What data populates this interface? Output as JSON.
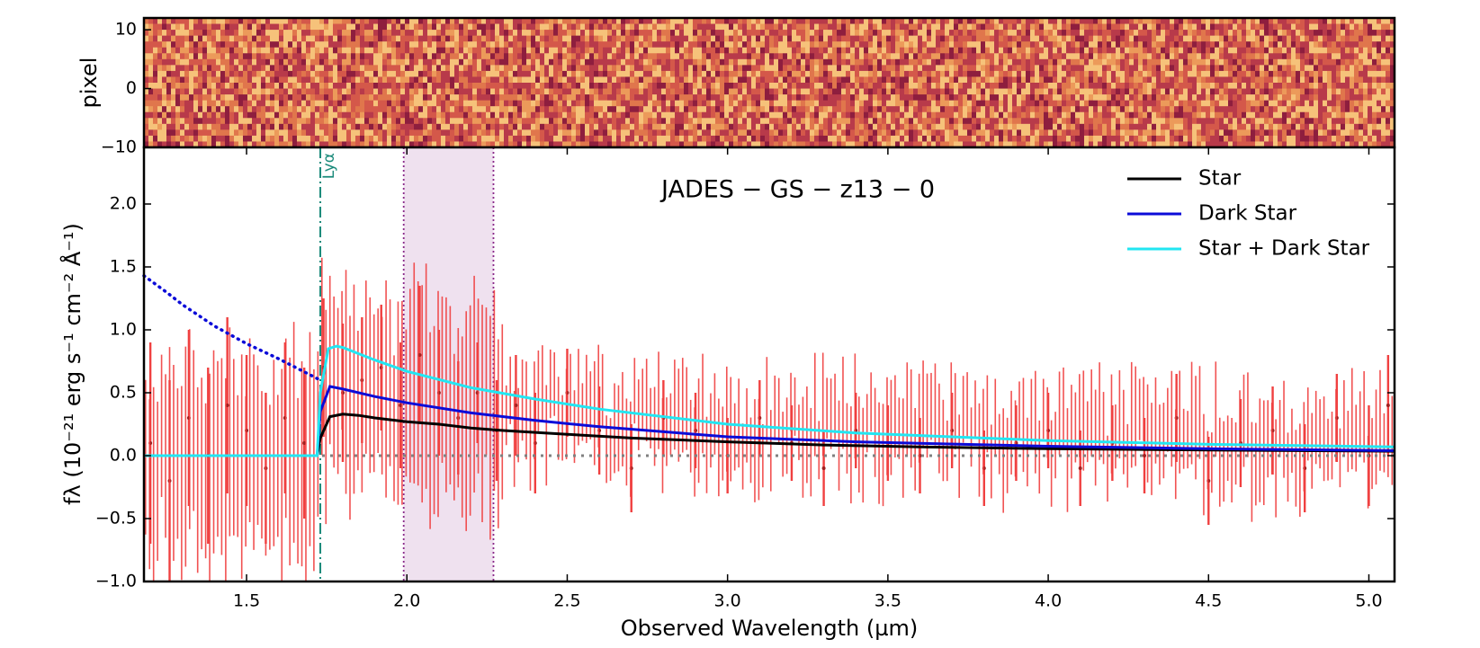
{
  "chart_data": [
    {
      "type": "heatmap",
      "name": "2D spectrum",
      "ylabel": "pixel",
      "ylim": [
        -10,
        12
      ],
      "y_ticks": [
        "10",
        "0",
        "−10"
      ],
      "xlim": [
        1.18,
        5.08
      ],
      "colormap": [
        "#8e1e3e",
        "#b83a4a",
        "#d4584a",
        "#e0764c",
        "#ec9a5a",
        "#f6c27a"
      ]
    },
    {
      "type": "line",
      "title": "JADES − GS − z13 − 0",
      "xlabel": "Observed Wavelength (µm)",
      "ylabel": "fλ (10⁻²¹ erg s⁻¹ cm⁻² Å⁻¹)",
      "xlim": [
        1.18,
        5.08
      ],
      "ylim": [
        -1.0,
        2.45
      ],
      "x_ticks": [
        "1.5",
        "2.0",
        "2.5",
        "3.0",
        "3.5",
        "4.0",
        "4.5",
        "5.0"
      ],
      "y_ticks": [
        "−1.0",
        "−0.5",
        "0.0",
        "0.5",
        "1.0",
        "1.5",
        "2.0"
      ],
      "lya_label": "Lyα",
      "lya_wavelength": 1.73,
      "shaded_band": [
        1.99,
        2.27
      ],
      "legend_position": "top-right",
      "series": [
        {
          "name": "Star",
          "color": "#000000",
          "x": [
            1.18,
            1.72,
            1.73,
            1.76,
            1.8,
            1.85,
            1.9,
            2.0,
            2.1,
            2.2,
            2.3,
            2.5,
            2.7,
            3.0,
            3.3,
            3.6,
            4.0,
            4.5,
            5.08
          ],
          "values": [
            0.0,
            0.0,
            0.14,
            0.31,
            0.33,
            0.32,
            0.3,
            0.27,
            0.25,
            0.22,
            0.2,
            0.17,
            0.14,
            0.11,
            0.085,
            0.07,
            0.055,
            0.045,
            0.035
          ]
        },
        {
          "name": "Dark Star",
          "color": "#0b0bd8",
          "x": [
            1.18,
            1.72,
            1.73,
            1.76,
            1.8,
            1.9,
            2.0,
            2.2,
            2.4,
            2.6,
            3.0,
            3.4,
            4.0,
            4.5,
            5.08
          ],
          "values": [
            0.0,
            0.0,
            0.35,
            0.55,
            0.53,
            0.47,
            0.42,
            0.34,
            0.28,
            0.23,
            0.15,
            0.11,
            0.075,
            0.055,
            0.04
          ],
          "extrapolation": {
            "style": "dotted",
            "x": [
              1.18,
              1.25,
              1.3,
              1.4,
              1.5,
              1.6,
              1.7,
              1.73
            ],
            "values": [
              1.43,
              1.3,
              1.2,
              1.03,
              0.89,
              0.77,
              0.64,
              0.6
            ]
          }
        },
        {
          "name": "Star + Dark Star",
          "color": "#22e6f2",
          "x": [
            1.18,
            1.72,
            1.73,
            1.755,
            1.78,
            1.8,
            1.9,
            2.0,
            2.2,
            2.4,
            2.6,
            3.0,
            3.4,
            4.0,
            4.5,
            5.08
          ],
          "values": [
            0.0,
            0.0,
            0.5,
            0.85,
            0.87,
            0.86,
            0.76,
            0.67,
            0.54,
            0.45,
            0.37,
            0.25,
            0.18,
            0.12,
            0.09,
            0.07
          ]
        }
      ],
      "zero_line": {
        "style": "dotted",
        "color": "#808080",
        "value": 0.0
      },
      "data_points": {
        "name": "observed spectrum",
        "color": "#f04040",
        "x": [
          1.2,
          1.26,
          1.32,
          1.38,
          1.44,
          1.5,
          1.56,
          1.62,
          1.68,
          1.74,
          1.8,
          1.86,
          1.92,
          1.98,
          2.04,
          2.1,
          2.16,
          2.22,
          2.28,
          2.34,
          2.4,
          2.5,
          2.6,
          2.7,
          2.8,
          2.9,
          3.0,
          3.1,
          3.2,
          3.3,
          3.4,
          3.5,
          3.6,
          3.7,
          3.8,
          3.9,
          4.0,
          4.1,
          4.2,
          4.3,
          4.4,
          4.5,
          4.6,
          4.7,
          4.8,
          4.9,
          5.0,
          5.06
        ],
        "values": [
          0.1,
          -0.2,
          0.3,
          0.0,
          0.4,
          0.2,
          -0.1,
          0.3,
          0.1,
          0.7,
          0.5,
          0.6,
          0.7,
          0.4,
          0.8,
          0.5,
          0.3,
          0.5,
          0.2,
          0.4,
          0.1,
          0.5,
          0.2,
          -0.1,
          0.3,
          0.2,
          0.0,
          0.3,
          0.1,
          -0.1,
          0.2,
          0.1,
          0.0,
          0.2,
          -0.1,
          0.1,
          0.2,
          -0.1,
          0.1,
          0.0,
          0.3,
          -0.2,
          0.1,
          0.2,
          -0.1,
          0.3,
          0.0,
          0.4
        ],
        "errors": [
          0.8,
          0.8,
          0.7,
          0.7,
          0.7,
          0.6,
          0.6,
          0.6,
          0.6,
          0.55,
          0.55,
          0.5,
          0.5,
          0.5,
          0.55,
          0.5,
          0.45,
          0.4,
          0.4,
          0.4,
          0.4,
          0.35,
          0.35,
          0.35,
          0.3,
          0.3,
          0.3,
          0.3,
          0.3,
          0.3,
          0.3,
          0.3,
          0.3,
          0.3,
          0.3,
          0.3,
          0.3,
          0.3,
          0.3,
          0.3,
          0.35,
          0.35,
          0.35,
          0.35,
          0.35,
          0.35,
          0.4,
          0.4
        ]
      }
    }
  ]
}
